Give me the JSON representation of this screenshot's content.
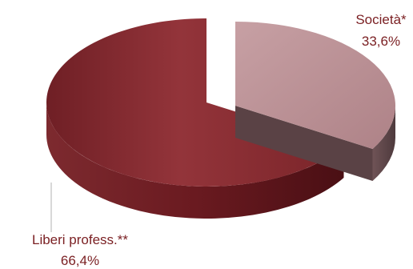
{
  "chart_data": {
    "type": "pie",
    "style": "3d-exploded",
    "slices": [
      {
        "name": "Società*",
        "value": 33.6,
        "value_label": "33,6%",
        "color": "#b98d91",
        "exploded": true
      },
      {
        "name": "Liberi profess.**",
        "value": 66.4,
        "value_label": "66,4%",
        "color": "#8e2e34",
        "exploded": false
      }
    ],
    "legend": "none",
    "data_labels": "outside"
  }
}
